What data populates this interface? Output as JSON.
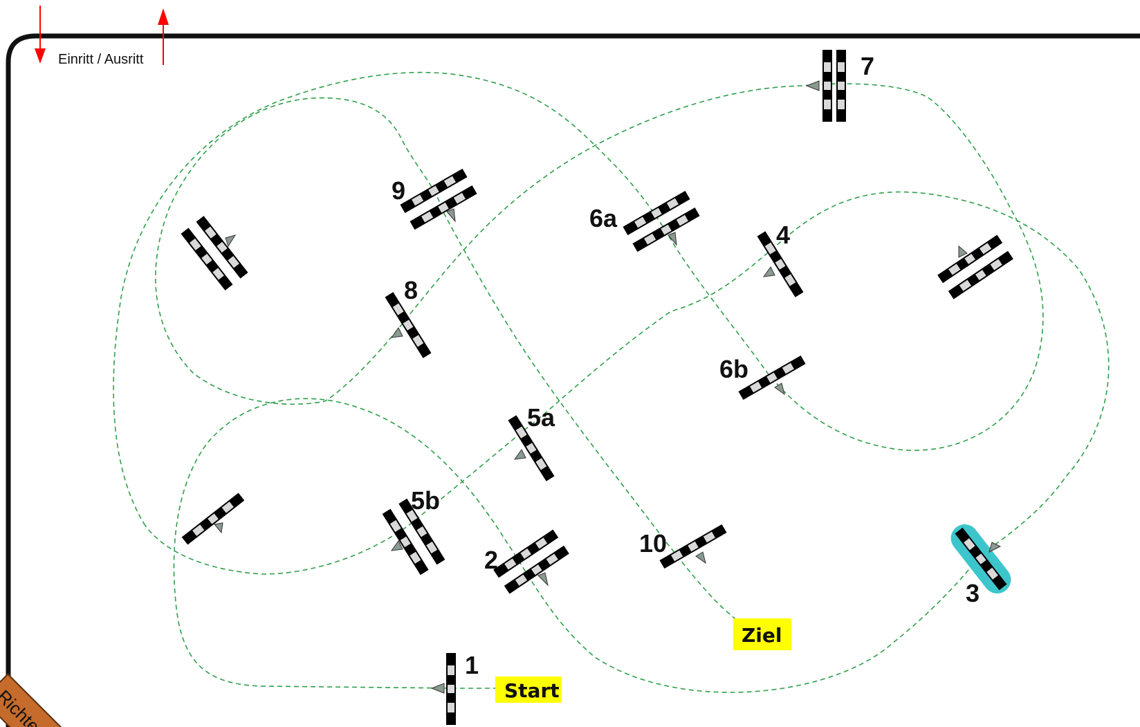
{
  "entry": {
    "label": "Einritt / Ausritt"
  },
  "start_label": "Start",
  "finish_label": "Ziel",
  "judge_label": "Richter",
  "colors": {
    "arena_border": "#111111",
    "track": "#2e9e4a",
    "entry_arrows": "#ff0000",
    "label_background": "#ffff00",
    "highlight": "#3cc6cc",
    "judge_box": "#c56b2c",
    "arrow_fill": "#8a9a90"
  },
  "obstacles": [
    {
      "number": "1",
      "type": "single"
    },
    {
      "number": "2",
      "type": "double"
    },
    {
      "number": "3",
      "type": "single-highlighted"
    },
    {
      "number": "4",
      "type": "single"
    },
    {
      "number": "5a",
      "type": "single"
    },
    {
      "number": "5b",
      "type": "double"
    },
    {
      "number": "6a",
      "type": "double"
    },
    {
      "number": "6b",
      "type": "single"
    },
    {
      "number": "7",
      "type": "double"
    },
    {
      "number": "8",
      "type": "single"
    },
    {
      "number": "9",
      "type": "double"
    },
    {
      "number": "10",
      "type": "single"
    }
  ]
}
